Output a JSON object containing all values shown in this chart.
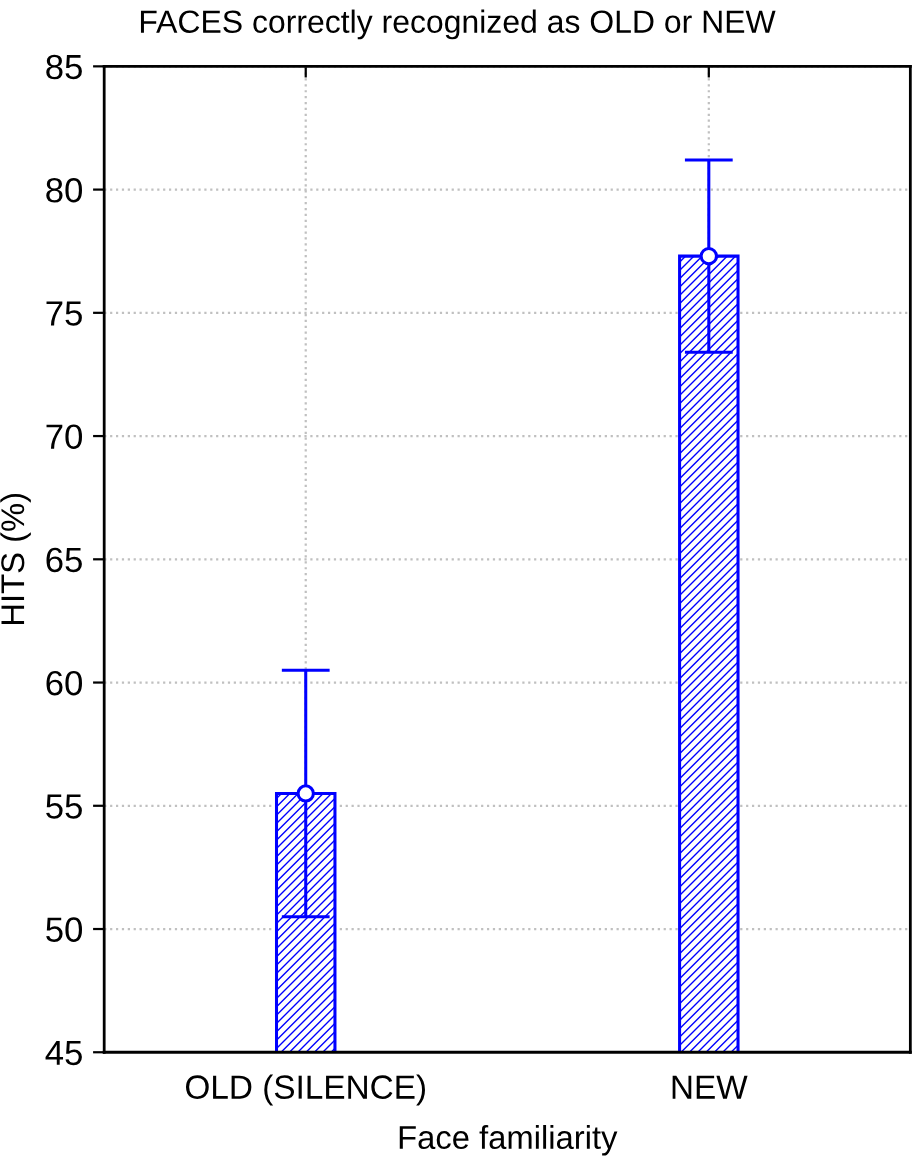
{
  "chart_data": {
    "type": "bar",
    "title": "FACES correctly recognized as OLD or NEW",
    "xlabel": "Face familiarity",
    "ylabel": "HITS (%)",
    "categories": [
      "OLD (SILENCE)",
      "NEW"
    ],
    "series": [
      {
        "color": "#0000ff",
        "values": [
          55.5,
          77.3
        ],
        "errors": [
          5.0,
          3.9
        ]
      },
      {
        "type": "scatter",
        "x": [
          "OLD (SILENCE)",
          "NEW"
        ],
        "color": "#ffffff",
        "values": [
          55.5,
          77.3
        ],
        "marker": "circle"
      }
    ],
    "ylim": [
      45,
      85
    ],
    "yticks": [
      45,
      50,
      55,
      60,
      65,
      70,
      75,
      80,
      85
    ],
    "grid": true
  }
}
